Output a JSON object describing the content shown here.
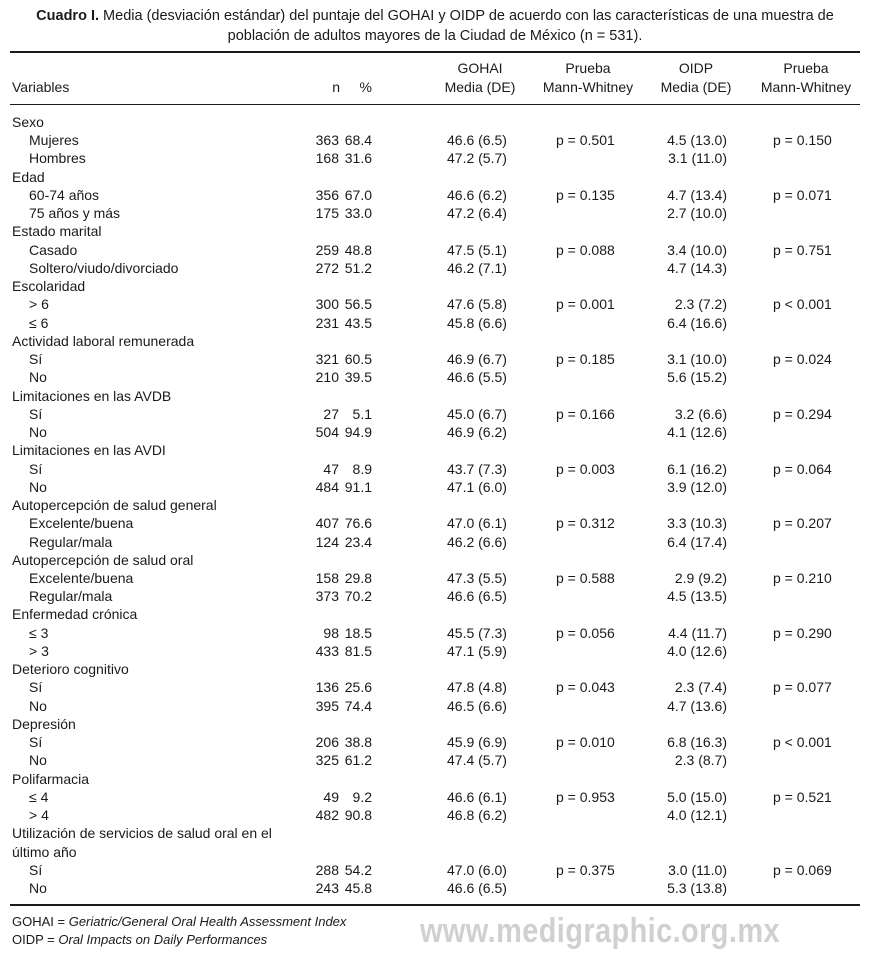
{
  "title": {
    "label": "Cuadro I.",
    "line1": "Media (desviación estándar) del puntaje del GOHAI y OIDP de acuerdo con las características de una muestra de",
    "line2": "población de adultos mayores de la Ciudad de México (n = 531)."
  },
  "headers": {
    "variables": "Variables",
    "n": "n",
    "pct": "%",
    "gohai_1": "GOHAI",
    "gohai_2": "Media (DE)",
    "test1_1": "Prueba",
    "test1_2": "Mann-Whitney",
    "oidp_1": "OIDP",
    "oidp_2": "Media (DE)",
    "test2_1": "Prueba",
    "test2_2": "Mann-Whitney"
  },
  "groups": [
    {
      "label": "Sexo",
      "rows": [
        {
          "label": "Mujeres",
          "n": "363",
          "pct": "68.4",
          "gohai": "46.6 (6.5)",
          "p_gohai": "p = 0.501",
          "oidp": "4.5 (13.0)",
          "p_oidp": "p = 0.150"
        },
        {
          "label": "Hombres",
          "n": "168",
          "pct": "31.6",
          "gohai": "47.2 (5.7)",
          "p_gohai": "",
          "oidp": "3.1 (11.0)",
          "p_oidp": ""
        }
      ]
    },
    {
      "label": "Edad",
      "rows": [
        {
          "label": "60-74 años",
          "n": "356",
          "pct": "67.0",
          "gohai": "46.6 (6.2)",
          "p_gohai": "p = 0.135",
          "oidp": "4.7 (13.4)",
          "p_oidp": "p = 0.071"
        },
        {
          "label": "75 años y más",
          "n": "175",
          "pct": "33.0",
          "gohai": "47.2 (6.4)",
          "p_gohai": "",
          "oidp": "2.7 (10.0)",
          "p_oidp": ""
        }
      ]
    },
    {
      "label": "Estado marital",
      "rows": [
        {
          "label": "Casado",
          "n": "259",
          "pct": "48.8",
          "gohai": "47.5 (5.1)",
          "p_gohai": "p = 0.088",
          "oidp": "3.4 (10.0)",
          "p_oidp": "p = 0.751"
        },
        {
          "label": "Soltero/viudo/divorciado",
          "n": "272",
          "pct": "51.2",
          "gohai": "46.2 (7.1)",
          "p_gohai": "",
          "oidp": "4.7 (14.3)",
          "p_oidp": ""
        }
      ]
    },
    {
      "label": "Escolaridad",
      "rows": [
        {
          "label": "> 6",
          "n": "300",
          "pct": "56.5",
          "gohai": "47.6 (5.8)",
          "p_gohai": "p = 0.001",
          "oidp": "2.3 (7.2)",
          "p_oidp": "p < 0.001"
        },
        {
          "label": "≤ 6",
          "n": "231",
          "pct": "43.5",
          "gohai": "45.8 (6.6)",
          "p_gohai": "",
          "oidp": "6.4 (16.6)",
          "p_oidp": ""
        }
      ]
    },
    {
      "label": "Actividad laboral remunerada",
      "rows": [
        {
          "label": "Sí",
          "n": "321",
          "pct": "60.5",
          "gohai": "46.9 (6.7)",
          "p_gohai": "p = 0.185",
          "oidp": "3.1 (10.0)",
          "p_oidp": "p = 0.024"
        },
        {
          "label": "No",
          "n": "210",
          "pct": "39.5",
          "gohai": "46.6 (5.5)",
          "p_gohai": "",
          "oidp": "5.6 (15.2)",
          "p_oidp": ""
        }
      ]
    },
    {
      "label": "Limitaciones en las AVDB",
      "rows": [
        {
          "label": "Sí",
          "n": "27",
          "pct": "5.1",
          "gohai": "45.0 (6.7)",
          "p_gohai": "p = 0.166",
          "oidp": "3.2 (6.6)",
          "p_oidp": "p = 0.294"
        },
        {
          "label": "No",
          "n": "504",
          "pct": "94.9",
          "gohai": "46.9 (6.2)",
          "p_gohai": "",
          "oidp": "4.1 (12.6)",
          "p_oidp": ""
        }
      ]
    },
    {
      "label": "Limitaciones en las AVDI",
      "rows": [
        {
          "label": "Sí",
          "n": "47",
          "pct": "8.9",
          "gohai": "43.7 (7.3)",
          "p_gohai": "p = 0.003",
          "oidp": "6.1 (16.2)",
          "p_oidp": "p = 0.064"
        },
        {
          "label": "No",
          "n": "484",
          "pct": "91.1",
          "gohai": "47.1 (6.0)",
          "p_gohai": "",
          "oidp": "3.9 (12.0)",
          "p_oidp": ""
        }
      ]
    },
    {
      "label": "Autopercepción de salud general",
      "rows": [
        {
          "label": "Excelente/buena",
          "n": "407",
          "pct": "76.6",
          "gohai": "47.0 (6.1)",
          "p_gohai": "p = 0.312",
          "oidp": "3.3 (10.3)",
          "p_oidp": "p = 0.207"
        },
        {
          "label": "Regular/mala",
          "n": "124",
          "pct": "23.4",
          "gohai": "46.2 (6.6)",
          "p_gohai": "",
          "oidp": "6.4 (17.4)",
          "p_oidp": ""
        }
      ]
    },
    {
      "label": "Autopercepción de salud oral",
      "rows": [
        {
          "label": "Excelente/buena",
          "n": "158",
          "pct": "29.8",
          "gohai": "47.3 (5.5)",
          "p_gohai": "p = 0.588",
          "oidp": "2.9 (9.2)",
          "p_oidp": "p = 0.210"
        },
        {
          "label": "Regular/mala",
          "n": "373",
          "pct": "70.2",
          "gohai": "46.6 (6.5)",
          "p_gohai": "",
          "oidp": "4.5 (13.5)",
          "p_oidp": ""
        }
      ]
    },
    {
      "label": "Enfermedad crónica",
      "rows": [
        {
          "label": "≤ 3",
          "n": "98",
          "pct": "18.5",
          "gohai": "45.5 (7.3)",
          "p_gohai": "p = 0.056",
          "oidp": "4.4 (11.7)",
          "p_oidp": "p = 0.290"
        },
        {
          "label": "> 3",
          "n": "433",
          "pct": "81.5",
          "gohai": "47.1 (5.9)",
          "p_gohai": "",
          "oidp": "4.0 (12.6)",
          "p_oidp": ""
        }
      ]
    },
    {
      "label": "Deterioro cognitivo",
      "rows": [
        {
          "label": "Sí",
          "n": "136",
          "pct": "25.6",
          "gohai": "47.8 (4.8)",
          "p_gohai": "p = 0.043",
          "oidp": "2.3 (7.4)",
          "p_oidp": "p = 0.077"
        },
        {
          "label": "No",
          "n": "395",
          "pct": "74.4",
          "gohai": "46.5 (6.6)",
          "p_gohai": "",
          "oidp": "4.7 (13.6)",
          "p_oidp": ""
        }
      ]
    },
    {
      "label": "Depresión",
      "rows": [
        {
          "label": "Sí",
          "n": "206",
          "pct": "38.8",
          "gohai": "45.9 (6.9)",
          "p_gohai": "p = 0.010",
          "oidp": "6.8 (16.3)",
          "p_oidp": "p < 0.001"
        },
        {
          "label": "No",
          "n": "325",
          "pct": "61.2",
          "gohai": "47.4 (5.7)",
          "p_gohai": "",
          "oidp": "2.3 (8.7)",
          "p_oidp": ""
        }
      ]
    },
    {
      "label": "Polifarmacia",
      "rows": [
        {
          "label": "≤ 4",
          "n": "49",
          "pct": "9.2",
          "gohai": "46.6 (6.1)",
          "p_gohai": "p = 0.953",
          "oidp": "5.0 (15.0)",
          "p_oidp": "p = 0.521"
        },
        {
          "label": "> 4",
          "n": "482",
          "pct": "90.8",
          "gohai": "46.8 (6.2)",
          "p_gohai": "",
          "oidp": "4.0 (12.1)",
          "p_oidp": ""
        }
      ]
    },
    {
      "label": "Utilización de servicios de salud oral en el",
      "label_cont": "último año",
      "rows": [
        {
          "label": "Sí",
          "n": "288",
          "pct": "54.2",
          "gohai": "47.0 (6.0)",
          "p_gohai": "p = 0.375",
          "oidp": "3.0 (11.0)",
          "p_oidp": "p = 0.069"
        },
        {
          "label": "No",
          "n": "243",
          "pct": "45.8",
          "gohai": "46.6 (6.5)",
          "p_gohai": "",
          "oidp": "5.3 (13.8)",
          "p_oidp": ""
        }
      ]
    }
  ],
  "watermark": "www.medigraphic.org.mx",
  "footnotes": [
    {
      "abbr": "GOHAI = ",
      "text": "Geriatric/General Oral Health Assessment Index"
    },
    {
      "abbr": "OIDP = ",
      "text": "Oral Impacts on Daily Performances"
    }
  ]
}
